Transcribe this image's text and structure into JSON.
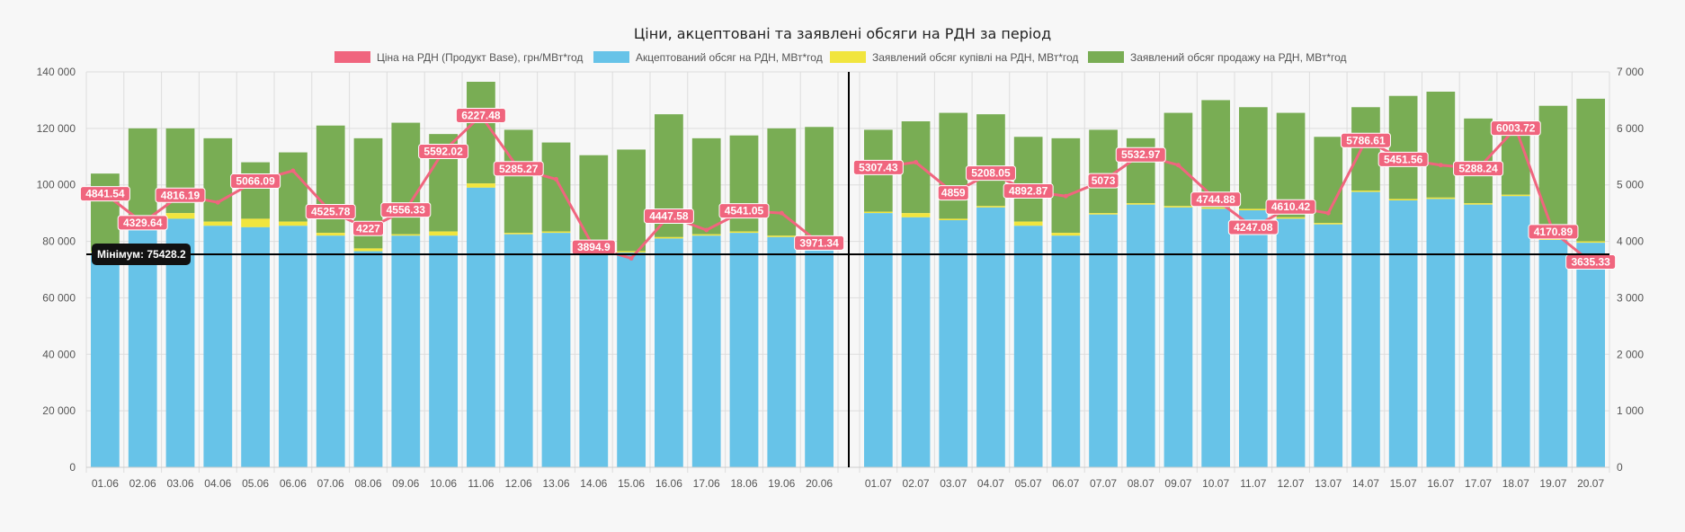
{
  "chart_data": {
    "type": "bar",
    "title": "Ціни, акцептовані та заявлені обсяги на РДН за період",
    "colors": {
      "price": "#f0657e",
      "accepted": "#67c3e8",
      "buy": "#f1e53e",
      "sell": "#79ad54",
      "grid": "#dddddd",
      "annotation_bg": "#111111"
    },
    "legend_position": "top",
    "grid": true,
    "y_left": {
      "min": 0,
      "max": 140000,
      "ticks": [
        "0",
        "20 000",
        "40 000",
        "60 000",
        "80 000",
        "100 000",
        "120 000",
        "140 000"
      ]
    },
    "y_right": {
      "min": 0,
      "max": 7000,
      "ticks": [
        "0",
        "1 000",
        "2 000",
        "3 000",
        "4 000",
        "5 000",
        "6 000",
        "7 000"
      ]
    },
    "series_labels": {
      "price": "Ціна на РДН (Продукт Base), грн/МВт*год",
      "accepted": "Акцептований обсяг на РДН, МВт*год",
      "buy": "Заявлений обсяг купівлі на РДН, МВт*год",
      "sell": "Заявлений обсяг продажу на РДН, МВт*год"
    },
    "annotation": {
      "label": "Мінімум: 75428.2",
      "value": 75428.2
    },
    "panels": [
      {
        "categories": [
          "01.06",
          "02.06",
          "03.06",
          "04.06",
          "05.06",
          "06.06",
          "07.06",
          "08.06",
          "09.06",
          "10.06",
          "11.06",
          "12.06",
          "13.06",
          "14.06",
          "15.06",
          "16.06",
          "17.06",
          "18.06",
          "19.06",
          "20.06"
        ],
        "accepted": [
          76000,
          85000,
          88000,
          85500,
          85000,
          85500,
          82000,
          76500,
          82000,
          82000,
          99000,
          82500,
          83000,
          77500,
          76000,
          81000,
          82000,
          83000,
          81500,
          80000
        ],
        "buy": [
          500,
          700,
          2000,
          1500,
          3000,
          1500,
          1000,
          1000,
          500,
          1500,
          1500,
          500,
          500,
          500,
          500,
          500,
          500,
          500,
          500,
          500
        ],
        "sell_top": [
          104000,
          120000,
          120000,
          116500,
          108000,
          111500,
          121000,
          116500,
          122000,
          118000,
          136500,
          119500,
          115000,
          110500,
          112500,
          125000,
          116500,
          117500,
          120000,
          120500
        ],
        "price": [
          4841.54,
          4329.64,
          4816.19,
          4690,
          5066.09,
          5250,
          4525.78,
          4227,
          4556.33,
          5592.02,
          6227.48,
          5285.27,
          5100,
          3894.9,
          3700,
          4447.58,
          4200,
          4541.05,
          4500,
          3971.34
        ],
        "labels": [
          "4841.54",
          "4329.64",
          "4816.19",
          "",
          "5066.09",
          "",
          "4525.78",
          "4227",
          "4556.33",
          "5592.02",
          "6227.48",
          "5285.27",
          "",
          "3894.9",
          "",
          "4447.58",
          "",
          "4541.05",
          "",
          "3971.34"
        ]
      },
      {
        "categories": [
          "01.07",
          "02.07",
          "03.07",
          "04.07",
          "05.07",
          "06.07",
          "07.07",
          "08.07",
          "09.07",
          "10.07",
          "11.07",
          "12.07",
          "13.07",
          "14.07",
          "15.07",
          "16.07",
          "17.07",
          "18.07",
          "19.07",
          "20.07"
        ],
        "accepted": [
          90000,
          88500,
          87500,
          92000,
          85500,
          82000,
          89500,
          93000,
          92000,
          91500,
          91000,
          88000,
          86000,
          97500,
          94500,
          95000,
          93000,
          96000,
          80500,
          79500
        ],
        "buy": [
          500,
          1500,
          500,
          500,
          1500,
          1000,
          500,
          500,
          500,
          500,
          500,
          500,
          500,
          500,
          500,
          500,
          500,
          500,
          500,
          500
        ],
        "sell_top": [
          119500,
          122500,
          125500,
          125000,
          117000,
          116500,
          119500,
          116500,
          125500,
          130000,
          127500,
          125500,
          117000,
          127500,
          131500,
          133000,
          123500,
          119000,
          128000,
          130500
        ],
        "price": [
          5307.43,
          5400,
          4859,
          5208.05,
          4892.87,
          4800,
          5073,
          5532.97,
          5350,
          4744.88,
          4247.08,
          4610.42,
          4500,
          5786.61,
          5451.56,
          5350,
          5288.24,
          6003.72,
          4170.89,
          3635.33
        ],
        "labels": [
          "5307.43",
          "",
          "4859",
          "5208.05",
          "4892.87",
          "",
          "5073",
          "5532.97",
          "",
          "4744.88",
          "4247.08",
          "4610.42",
          "",
          "5786.61",
          "5451.56",
          "",
          "5288.24",
          "6003.72",
          "4170.89",
          "3635.33"
        ]
      }
    ]
  }
}
